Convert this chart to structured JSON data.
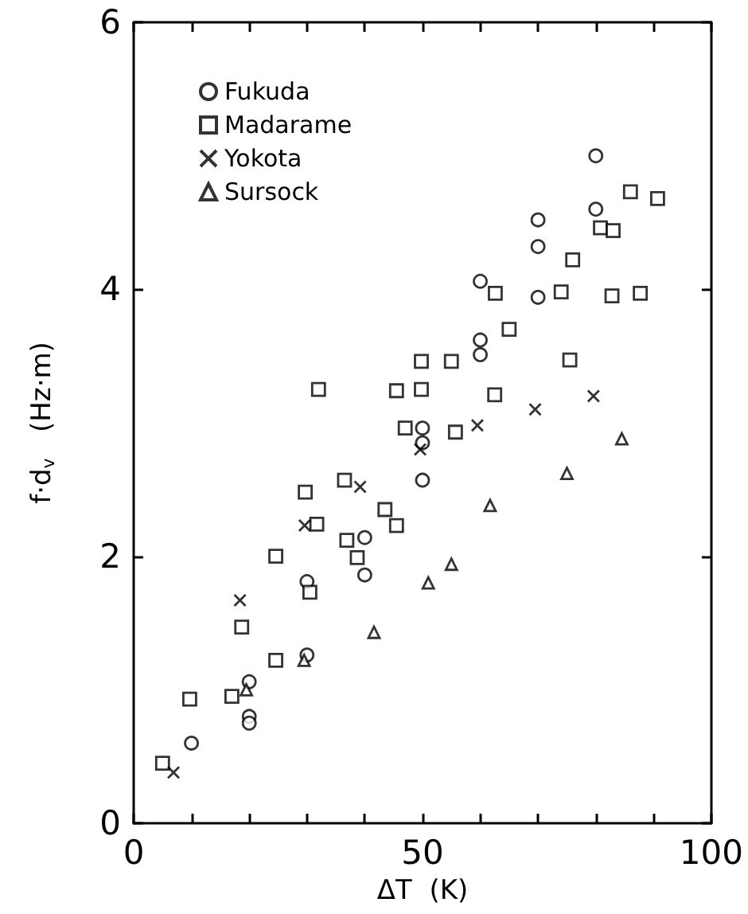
{
  "chart_data": {
    "type": "scatter",
    "xlabel": "ΔT  (K)",
    "ylabel": "f·d$_{v}$   (Hz·m)",
    "xlim": [
      0,
      100
    ],
    "ylim": [
      0,
      6
    ],
    "xticks": [
      0,
      {
        "value": 10,
        "label": null
      },
      {
        "value": 20,
        "label": null
      },
      {
        "value": 30,
        "label": null
      },
      {
        "value": 40,
        "label": null
      },
      50,
      {
        "value": 60,
        "label": null
      },
      {
        "value": 70,
        "label": null
      },
      {
        "value": 80,
        "label": null
      },
      {
        "value": 90,
        "label": null
      },
      100
    ],
    "yticks": [
      0,
      2,
      4,
      6
    ],
    "grid": false,
    "legend": "top left",
    "series": [
      {
        "name": "Fukuda",
        "color": "#000000",
        "marker": "circle",
        "x": [
          80,
          80,
          70,
          70,
          70,
          60,
          60,
          60,
          50,
          50,
          50,
          40,
          40,
          30,
          30,
          20,
          20,
          20,
          10
        ],
        "values": [
          5.0,
          4.6,
          4.52,
          4.32,
          3.94,
          4.06,
          3.62,
          3.51,
          2.96,
          2.85,
          2.57,
          2.14,
          1.86,
          1.81,
          1.26,
          1.06,
          0.8,
          0.75,
          0.6
        ]
      },
      {
        "name": "Madarame",
        "color": "#000000",
        "marker": "square",
        "x": [
          86,
          90.7,
          80.8,
          83,
          76,
          62.6,
          74,
          82.8,
          87.7,
          65,
          49.8,
          55,
          75.5,
          32,
          45.5,
          49.8,
          62.5,
          47,
          55.7,
          36.5,
          29.7,
          31.7,
          43.5,
          45.5,
          36.9,
          38.7,
          24.6,
          30.5,
          18.7,
          24.6,
          17,
          9.7,
          5
        ],
        "values": [
          4.73,
          4.68,
          4.46,
          4.44,
          4.22,
          3.97,
          3.98,
          3.95,
          3.97,
          3.7,
          3.46,
          3.46,
          3.47,
          3.25,
          3.24,
          3.25,
          3.21,
          2.96,
          2.93,
          2.57,
          2.48,
          2.24,
          2.35,
          2.23,
          2.12,
          1.99,
          2.0,
          1.73,
          1.47,
          1.22,
          0.95,
          0.93,
          0.45
        ]
      },
      {
        "name": "Yokota",
        "color": "#000000",
        "marker": "cross",
        "x": [
          79.6,
          69.5,
          59.5,
          49.6,
          39.2,
          29.6,
          18.4,
          6.9
        ],
        "values": [
          3.2,
          3.1,
          2.98,
          2.8,
          2.52,
          2.23,
          1.67,
          0.38
        ]
      },
      {
        "name": "Sursock",
        "color": "#000000",
        "marker": "triangle",
        "x": [
          19.5,
          29.5,
          41.6,
          51,
          55,
          61.7,
          75,
          84.5
        ],
        "values": [
          1.0,
          1.22,
          1.43,
          1.8,
          1.94,
          2.38,
          2.62,
          2.88
        ]
      }
    ]
  }
}
